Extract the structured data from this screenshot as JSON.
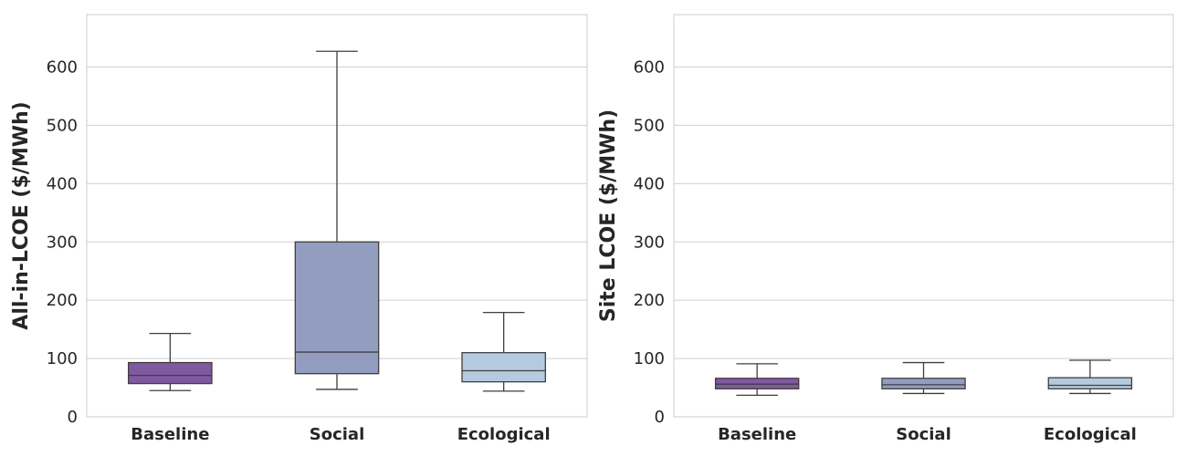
{
  "chart_data": [
    {
      "type": "box",
      "ylabel": "All-in-LCOE ($/MWh)",
      "ylim": [
        0,
        690
      ],
      "yticks": [
        0,
        100,
        200,
        300,
        400,
        500,
        600
      ],
      "grid": true,
      "categories": [
        "Baseline",
        "Social",
        "Ecological"
      ],
      "colors": [
        "#8159a1",
        "#939dc0",
        "#b6cadf"
      ],
      "boxes": [
        {
          "category": "Baseline",
          "whisker_low": 45,
          "q1": 57,
          "median": 71,
          "q3": 93,
          "whisker_high": 143
        },
        {
          "category": "Social",
          "whisker_low": 47,
          "q1": 74,
          "median": 111,
          "q3": 300,
          "whisker_high": 627
        },
        {
          "category": "Ecological",
          "whisker_low": 44,
          "q1": 60,
          "median": 79,
          "q3": 110,
          "whisker_high": 179
        }
      ]
    },
    {
      "type": "box",
      "ylabel": "Site LCOE ($/MWh)",
      "ylim": [
        0,
        690
      ],
      "yticks": [
        0,
        100,
        200,
        300,
        400,
        500,
        600
      ],
      "grid": true,
      "categories": [
        "Baseline",
        "Social",
        "Ecological"
      ],
      "colors": [
        "#8159a1",
        "#939dc0",
        "#b6cadf"
      ],
      "boxes": [
        {
          "category": "Baseline",
          "whisker_low": 37,
          "q1": 48,
          "median": 56,
          "q3": 66,
          "whisker_high": 91
        },
        {
          "category": "Social",
          "whisker_low": 40,
          "q1": 48,
          "median": 55,
          "q3": 66,
          "whisker_high": 93
        },
        {
          "category": "Ecological",
          "whisker_low": 40,
          "q1": 48,
          "median": 54,
          "q3": 67,
          "whisker_high": 97
        }
      ]
    }
  ]
}
